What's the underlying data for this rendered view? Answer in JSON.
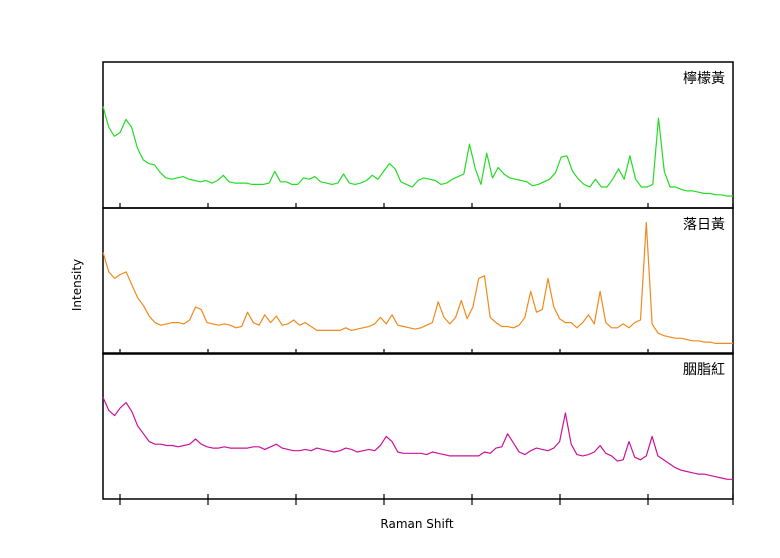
{
  "chart_data": {
    "type": "line",
    "layout": "stacked-panels",
    "xlabel": "Raman Shift",
    "ylabel": "Intensity",
    "grid": false,
    "legend": "none",
    "x_ticks_labeled": false,
    "y_ticks_labeled": false,
    "series": [
      {
        "name": "檸檬黃",
        "color": "#22dd22",
        "values": [
          0.72,
          0.56,
          0.49,
          0.52,
          0.62,
          0.56,
          0.4,
          0.31,
          0.28,
          0.27,
          0.21,
          0.17,
          0.16,
          0.17,
          0.18,
          0.16,
          0.15,
          0.14,
          0.15,
          0.13,
          0.15,
          0.19,
          0.14,
          0.13,
          0.13,
          0.13,
          0.12,
          0.12,
          0.12,
          0.13,
          0.22,
          0.14,
          0.14,
          0.12,
          0.12,
          0.17,
          0.16,
          0.18,
          0.14,
          0.13,
          0.12,
          0.13,
          0.2,
          0.13,
          0.12,
          0.13,
          0.15,
          0.19,
          0.16,
          0.22,
          0.28,
          0.24,
          0.14,
          0.12,
          0.1,
          0.15,
          0.17,
          0.16,
          0.15,
          0.12,
          0.13,
          0.16,
          0.18,
          0.2,
          0.43,
          0.24,
          0.12,
          0.36,
          0.17,
          0.25,
          0.2,
          0.17,
          0.16,
          0.15,
          0.14,
          0.11,
          0.12,
          0.14,
          0.16,
          0.21,
          0.33,
          0.34,
          0.22,
          0.16,
          0.12,
          0.1,
          0.16,
          0.1,
          0.1,
          0.16,
          0.24,
          0.16,
          0.34,
          0.16,
          0.1,
          0.1,
          0.12,
          0.63,
          0.22,
          0.1,
          0.1,
          0.08,
          0.07,
          0.07,
          0.06,
          0.05,
          0.05,
          0.04,
          0.04,
          0.03,
          0.03
        ]
      },
      {
        "name": "落日黃",
        "color": "#f08a1c",
        "values": [
          0.72,
          0.57,
          0.52,
          0.55,
          0.57,
          0.47,
          0.37,
          0.31,
          0.23,
          0.18,
          0.16,
          0.17,
          0.18,
          0.18,
          0.17,
          0.2,
          0.3,
          0.28,
          0.18,
          0.17,
          0.16,
          0.17,
          0.16,
          0.14,
          0.15,
          0.26,
          0.18,
          0.16,
          0.24,
          0.18,
          0.23,
          0.16,
          0.17,
          0.2,
          0.16,
          0.18,
          0.15,
          0.12,
          0.12,
          0.12,
          0.12,
          0.12,
          0.14,
          0.12,
          0.13,
          0.14,
          0.15,
          0.17,
          0.22,
          0.17,
          0.24,
          0.16,
          0.15,
          0.14,
          0.13,
          0.14,
          0.16,
          0.18,
          0.34,
          0.22,
          0.17,
          0.22,
          0.35,
          0.21,
          0.3,
          0.52,
          0.54,
          0.22,
          0.18,
          0.15,
          0.15,
          0.14,
          0.16,
          0.22,
          0.42,
          0.26,
          0.28,
          0.52,
          0.3,
          0.21,
          0.18,
          0.18,
          0.14,
          0.18,
          0.24,
          0.17,
          0.42,
          0.18,
          0.14,
          0.14,
          0.17,
          0.14,
          0.18,
          0.2,
          0.95,
          0.17,
          0.1,
          0.08,
          0.07,
          0.06,
          0.06,
          0.05,
          0.04,
          0.04,
          0.03,
          0.03,
          0.02,
          0.02,
          0.02,
          0.02
        ]
      },
      {
        "name": "胭脂紅",
        "color": "#cc1199",
        "values": [
          0.72,
          0.62,
          0.58,
          0.64,
          0.68,
          0.61,
          0.5,
          0.44,
          0.38,
          0.36,
          0.36,
          0.35,
          0.35,
          0.34,
          0.35,
          0.36,
          0.4,
          0.36,
          0.34,
          0.33,
          0.33,
          0.34,
          0.33,
          0.33,
          0.33,
          0.33,
          0.34,
          0.34,
          0.32,
          0.34,
          0.36,
          0.33,
          0.32,
          0.31,
          0.31,
          0.32,
          0.31,
          0.33,
          0.32,
          0.31,
          0.3,
          0.31,
          0.33,
          0.32,
          0.3,
          0.31,
          0.32,
          0.31,
          0.35,
          0.42,
          0.38,
          0.3,
          0.29,
          0.29,
          0.29,
          0.29,
          0.28,
          0.3,
          0.29,
          0.28,
          0.27,
          0.27,
          0.27,
          0.27,
          0.27,
          0.27,
          0.3,
          0.29,
          0.33,
          0.34,
          0.44,
          0.37,
          0.3,
          0.28,
          0.31,
          0.33,
          0.32,
          0.31,
          0.33,
          0.38,
          0.6,
          0.36,
          0.28,
          0.27,
          0.28,
          0.3,
          0.35,
          0.29,
          0.27,
          0.23,
          0.24,
          0.38,
          0.26,
          0.24,
          0.27,
          0.42,
          0.27,
          0.24,
          0.21,
          0.18,
          0.16,
          0.15,
          0.14,
          0.13,
          0.13,
          0.12,
          0.11,
          0.1,
          0.09,
          0.09
        ]
      }
    ]
  }
}
